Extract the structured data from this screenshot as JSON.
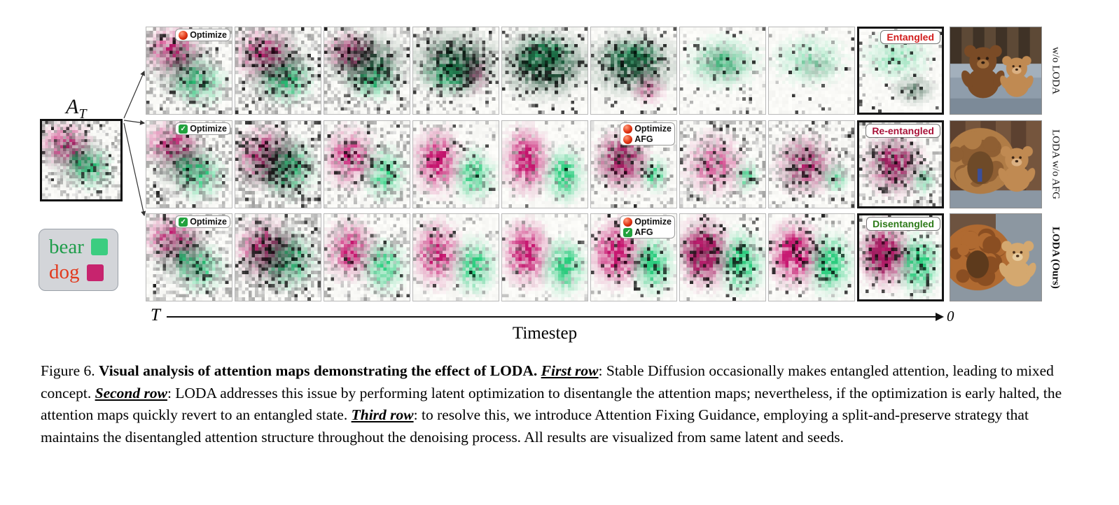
{
  "figure": {
    "at_label": {
      "main": "A",
      "sub": "T"
    },
    "at_map": {
      "s": 5,
      "g": 0.4,
      "d": 0.1,
      "b": [
        [
          "m",
          0.3,
          0.3,
          0.3,
          0.25,
          0.8
        ],
        [
          "k",
          0.45,
          0.5,
          0.3,
          0.28,
          0.5
        ],
        [
          "g",
          0.62,
          0.6,
          0.25,
          0.24,
          0.8
        ],
        [
          "g",
          0.45,
          0.5,
          0.08,
          0.08,
          1.2
        ]
      ]
    },
    "legend": [
      {
        "label": "bear",
        "text_color": "#1f9d4b",
        "swatch_color": "#3bcd80"
      },
      {
        "label": "dog",
        "text_color": "#e23a1e",
        "swatch_color": "#c7246e"
      }
    ],
    "axis": {
      "start": "T",
      "end": "0",
      "label": "Timestep"
    },
    "rows": [
      {
        "side_label": "w/o LODA",
        "side_bold": false,
        "photo": "couch",
        "start_badge": {
          "items": [
            {
              "icon": "red-dot",
              "label": "Optimize"
            }
          ]
        },
        "mid_badge": null,
        "end_badge": {
          "label": "Entangled",
          "color": "#d11c1c"
        },
        "cells": [
          {
            "s": 11,
            "g": 0.42,
            "d": 0.1,
            "b": [
              [
                "m",
                0.3,
                0.26,
                0.3,
                0.24,
                0.85
              ],
              [
                "k",
                0.42,
                0.48,
                0.3,
                0.28,
                0.55
              ],
              [
                "g",
                0.62,
                0.64,
                0.26,
                0.24,
                0.85
              ]
            ]
          },
          {
            "s": 12,
            "g": 0.45,
            "d": 0.16,
            "b": [
              [
                "m",
                0.34,
                0.3,
                0.3,
                0.26,
                0.9
              ],
              [
                "k",
                0.5,
                0.45,
                0.32,
                0.3,
                0.7
              ],
              [
                "g",
                0.6,
                0.62,
                0.28,
                0.24,
                0.85
              ]
            ]
          },
          {
            "s": 13,
            "g": 0.34,
            "d": 0.2,
            "b": [
              [
                "m",
                0.3,
                0.28,
                0.26,
                0.2,
                0.75
              ],
              [
                "k",
                0.5,
                0.4,
                0.4,
                0.28,
                0.95
              ],
              [
                "g",
                0.58,
                0.62,
                0.26,
                0.2,
                0.7
              ]
            ]
          },
          {
            "s": 14,
            "g": 0.22,
            "d": 0.22,
            "b": [
              [
                "k",
                0.5,
                0.4,
                0.42,
                0.3,
                1.1
              ],
              [
                "g",
                0.45,
                0.55,
                0.3,
                0.2,
                0.6
              ],
              [
                "m",
                0.72,
                0.55,
                0.16,
                0.2,
                0.45
              ]
            ]
          },
          {
            "s": 15,
            "g": 0.12,
            "d": 0.26,
            "b": [
              [
                "k",
                0.5,
                0.42,
                0.44,
                0.32,
                1.25
              ],
              [
                "g",
                0.5,
                0.3,
                0.3,
                0.18,
                0.5
              ]
            ]
          },
          {
            "s": 16,
            "g": 0.1,
            "d": 0.22,
            "b": [
              [
                "k",
                0.48,
                0.42,
                0.44,
                0.3,
                1.1
              ],
              [
                "m",
                0.68,
                0.72,
                0.18,
                0.16,
                0.5
              ],
              [
                "g",
                0.5,
                0.32,
                0.3,
                0.16,
                0.45
              ]
            ]
          },
          {
            "s": 17,
            "g": 0.08,
            "d": 0.09,
            "b": [
              [
                "g",
                0.5,
                0.4,
                0.4,
                0.28,
                0.5
              ],
              [
                "k",
                0.5,
                0.4,
                0.3,
                0.22,
                0.3
              ]
            ]
          },
          {
            "s": 18,
            "g": 0.06,
            "d": 0.06,
            "b": [
              [
                "g",
                0.48,
                0.38,
                0.4,
                0.28,
                0.38
              ],
              [
                "k",
                0.55,
                0.45,
                0.25,
                0.18,
                0.22
              ]
            ]
          },
          {
            "s": 19,
            "g": 0.06,
            "d": 0.14,
            "b": [
              [
                "g",
                0.45,
                0.34,
                0.38,
                0.26,
                0.42
              ],
              [
                "k",
                0.66,
                0.72,
                0.22,
                0.16,
                0.55
              ]
            ]
          }
        ]
      },
      {
        "side_label": "LODA w/o AFG",
        "side_bold": false,
        "photo": "dogbear",
        "start_badge": {
          "items": [
            {
              "icon": "check",
              "label": "Optimize"
            }
          ]
        },
        "mid_badge": {
          "cell": 6,
          "items": [
            {
              "icon": "red-dot",
              "label": "Optimize"
            },
            {
              "icon": "red-dot",
              "label": "AFG"
            }
          ]
        },
        "end_badge": {
          "label": "Re-entangled",
          "color": "#a81238"
        },
        "cells": [
          {
            "s": 21,
            "g": 0.42,
            "d": 0.11,
            "b": [
              [
                "m",
                0.3,
                0.27,
                0.3,
                0.24,
                0.85
              ],
              [
                "k",
                0.42,
                0.48,
                0.3,
                0.28,
                0.5
              ],
              [
                "g",
                0.63,
                0.63,
                0.25,
                0.24,
                0.85
              ],
              [
                "g",
                0.44,
                0.5,
                0.08,
                0.08,
                1.3
              ]
            ]
          },
          {
            "s": 22,
            "g": 0.5,
            "d": 0.24,
            "b": [
              [
                "m",
                0.34,
                0.4,
                0.3,
                0.3,
                0.9
              ],
              [
                "k",
                0.5,
                0.5,
                0.34,
                0.3,
                0.6
              ],
              [
                "g",
                0.62,
                0.55,
                0.28,
                0.28,
                0.9
              ]
            ]
          },
          {
            "s": 23,
            "g": 0.32,
            "d": 0.07,
            "b": [
              [
                "m",
                0.3,
                0.42,
                0.26,
                0.3,
                0.95
              ],
              [
                "g",
                0.7,
                0.6,
                0.22,
                0.26,
                0.9
              ]
            ]
          },
          {
            "s": 24,
            "g": 0.16,
            "d": 0.03,
            "b": [
              [
                "m",
                0.28,
                0.46,
                0.24,
                0.32,
                1.1
              ],
              [
                "g",
                0.72,
                0.62,
                0.2,
                0.26,
                1.0
              ]
            ]
          },
          {
            "s": 25,
            "g": 0.1,
            "d": 0.02,
            "b": [
              [
                "m",
                0.28,
                0.45,
                0.23,
                0.33,
                1.15
              ],
              [
                "g",
                0.73,
                0.62,
                0.2,
                0.27,
                1.05
              ]
            ]
          },
          {
            "s": 26,
            "g": 0.22,
            "d": 0.13,
            "b": [
              [
                "m",
                0.36,
                0.45,
                0.28,
                0.3,
                0.95
              ],
              [
                "k",
                0.36,
                0.45,
                0.3,
                0.32,
                0.3
              ],
              [
                "g",
                0.75,
                0.62,
                0.13,
                0.17,
                0.9
              ]
            ]
          },
          {
            "s": 27,
            "g": 0.34,
            "d": 0.1,
            "b": [
              [
                "m",
                0.4,
                0.5,
                0.3,
                0.32,
                0.7
              ],
              [
                "g",
                0.78,
                0.64,
                0.13,
                0.16,
                0.75
              ]
            ]
          },
          {
            "s": 28,
            "g": 0.34,
            "d": 0.15,
            "b": [
              [
                "m",
                0.42,
                0.5,
                0.3,
                0.3,
                0.75
              ],
              [
                "k",
                0.42,
                0.5,
                0.32,
                0.32,
                0.25
              ],
              [
                "g",
                0.78,
                0.65,
                0.13,
                0.16,
                0.7
              ]
            ]
          },
          {
            "s": 29,
            "g": 0.3,
            "d": 0.18,
            "b": [
              [
                "m",
                0.42,
                0.5,
                0.3,
                0.32,
                0.85
              ],
              [
                "k",
                0.42,
                0.5,
                0.33,
                0.34,
                0.3
              ],
              [
                "g",
                0.78,
                0.68,
                0.12,
                0.15,
                0.7
              ]
            ]
          }
        ]
      },
      {
        "side_label": "LODA (Ours)",
        "side_bold": true,
        "photo": "chow",
        "start_badge": {
          "items": [
            {
              "icon": "check",
              "label": "Optimize"
            }
          ]
        },
        "mid_badge": {
          "cell": 6,
          "items": [
            {
              "icon": "red-dot",
              "label": "Optimize"
            },
            {
              "icon": "check",
              "label": "AFG"
            }
          ]
        },
        "end_badge": {
          "label": "Disentangled",
          "color": "#2c7a18"
        },
        "cells": [
          {
            "s": 31,
            "g": 0.42,
            "d": 0.11,
            "b": [
              [
                "m",
                0.3,
                0.27,
                0.3,
                0.24,
                0.85
              ],
              [
                "k",
                0.42,
                0.48,
                0.3,
                0.28,
                0.5
              ],
              [
                "g",
                0.63,
                0.63,
                0.25,
                0.24,
                0.85
              ],
              [
                "g",
                0.44,
                0.5,
                0.08,
                0.08,
                1.3
              ]
            ]
          },
          {
            "s": 32,
            "g": 0.5,
            "d": 0.24,
            "b": [
              [
                "m",
                0.34,
                0.4,
                0.3,
                0.3,
                0.9
              ],
              [
                "k",
                0.5,
                0.5,
                0.34,
                0.3,
                0.6
              ],
              [
                "g",
                0.62,
                0.55,
                0.28,
                0.28,
                0.9
              ]
            ]
          },
          {
            "s": 33,
            "g": 0.3,
            "d": 0.06,
            "b": [
              [
                "m",
                0.3,
                0.42,
                0.26,
                0.3,
                0.95
              ],
              [
                "g",
                0.7,
                0.6,
                0.22,
                0.26,
                0.95
              ]
            ]
          },
          {
            "s": 34,
            "g": 0.15,
            "d": 0.03,
            "b": [
              [
                "m",
                0.28,
                0.46,
                0.24,
                0.32,
                1.1
              ],
              [
                "g",
                0.72,
                0.6,
                0.21,
                0.27,
                1.05
              ]
            ]
          },
          {
            "s": 35,
            "g": 0.1,
            "d": 0.02,
            "b": [
              [
                "m",
                0.28,
                0.45,
                0.23,
                0.33,
                1.15
              ],
              [
                "g",
                0.73,
                0.6,
                0.21,
                0.28,
                1.1
              ]
            ]
          },
          {
            "s": 36,
            "g": 0.08,
            "d": 0.1,
            "b": [
              [
                "m",
                0.3,
                0.45,
                0.26,
                0.32,
                1.25
              ],
              [
                "g",
                0.72,
                0.58,
                0.2,
                0.28,
                1.25
              ]
            ]
          },
          {
            "s": 37,
            "g": 0.08,
            "d": 0.16,
            "b": [
              [
                "m",
                0.28,
                0.45,
                0.26,
                0.33,
                1.3
              ],
              [
                "k",
                0.28,
                0.45,
                0.28,
                0.34,
                0.3
              ],
              [
                "g",
                0.72,
                0.56,
                0.22,
                0.3,
                1.3
              ]
            ]
          },
          {
            "s": 38,
            "g": 0.08,
            "d": 0.14,
            "b": [
              [
                "m",
                0.3,
                0.46,
                0.26,
                0.32,
                1.25
              ],
              [
                "g",
                0.72,
                0.57,
                0.22,
                0.3,
                1.2
              ]
            ]
          },
          {
            "s": 39,
            "g": 0.08,
            "d": 0.15,
            "b": [
              [
                "m",
                0.3,
                0.47,
                0.26,
                0.32,
                1.25
              ],
              [
                "k",
                0.3,
                0.47,
                0.28,
                0.33,
                0.3
              ],
              [
                "g",
                0.72,
                0.58,
                0.22,
                0.3,
                1.2
              ]
            ]
          }
        ]
      }
    ]
  },
  "caption": {
    "segments": [
      {
        "text": "Figure 6. ",
        "style": "normal"
      },
      {
        "text": "Visual analysis of attention maps demonstrating the effect of LODA. ",
        "style": "bold"
      },
      {
        "text": "First row",
        "style": "rowref"
      },
      {
        "text": ": Stable Diffusion occasionally makes entangled attention, leading to mixed concept. ",
        "style": "normal"
      },
      {
        "text": "Second row",
        "style": "rowref"
      },
      {
        "text": ": LODA addresses this issue by performing latent optimization to disentangle the attention maps; nevertheless, if the optimization is early halted, the attention maps quickly revert to an entangled state. ",
        "style": "normal"
      },
      {
        "text": "Third row",
        "style": "rowref"
      },
      {
        "text": ": to resolve this, we introduce Attention Fixing Guidance, employing a split-and-preserve strategy that maintains the disentangled attention structure throughout the denoising process. All results are visualized from same latent and seeds.",
        "style": "normal"
      }
    ]
  }
}
